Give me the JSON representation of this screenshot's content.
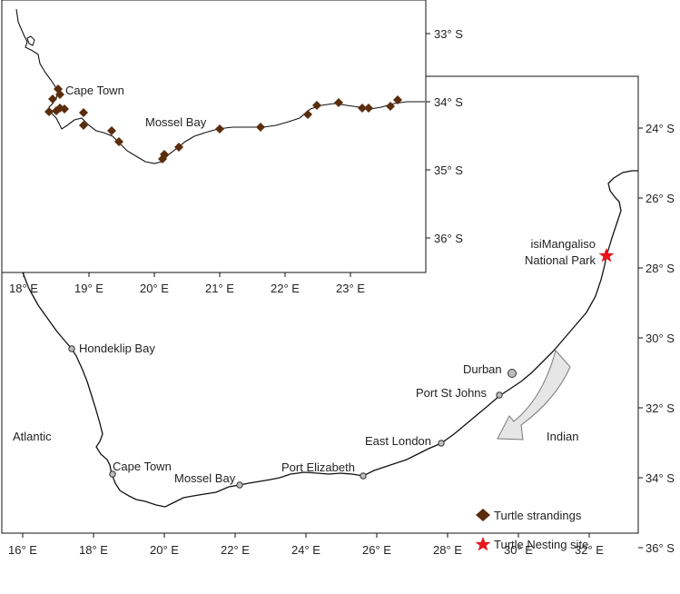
{
  "main_map": {
    "x_ticks": [
      "16° E",
      "18° E",
      "20° E",
      "22° E",
      "24° E",
      "26° E",
      "28° E",
      "30° E",
      "32° E"
    ],
    "y_ticks": [
      "24° S",
      "26° S",
      "28° S",
      "30° S",
      "32° S",
      "34° S",
      "36° S"
    ],
    "places": {
      "hondeklip": "Hondeklip Bay",
      "cape_town": "Cape Town",
      "mossel_bay": "Mossel Bay",
      "port_elizabeth": "Port Elizabeth",
      "east_london": "East London",
      "port_st_johns": "Port St Johns",
      "durban": "Durban",
      "nesting_1": "isiMangaliso",
      "nesting_2": "National Park"
    },
    "oceans": {
      "atlantic": "Atlantic",
      "indian": "Indian"
    },
    "legend": {
      "strandings": "Turtle strandings",
      "nesting": "Turtle Nesting site"
    }
  },
  "inset_map": {
    "x_ticks": [
      "18° E",
      "19° E",
      "20° E",
      "21° E",
      "22° E",
      "23° E"
    ],
    "y_ticks": [
      "33° S",
      "34° S",
      "35° S",
      "36° S"
    ],
    "places": {
      "cape_town": "Cape Town",
      "mossel_bay": "Mossel Bay"
    }
  },
  "colors": {
    "stranding": "#5a2d0c",
    "nesting": "#e8141c",
    "coast": "#111111",
    "current_arrow_fill": "#e6e6e6",
    "current_arrow_stroke": "#7a7a7a"
  }
}
